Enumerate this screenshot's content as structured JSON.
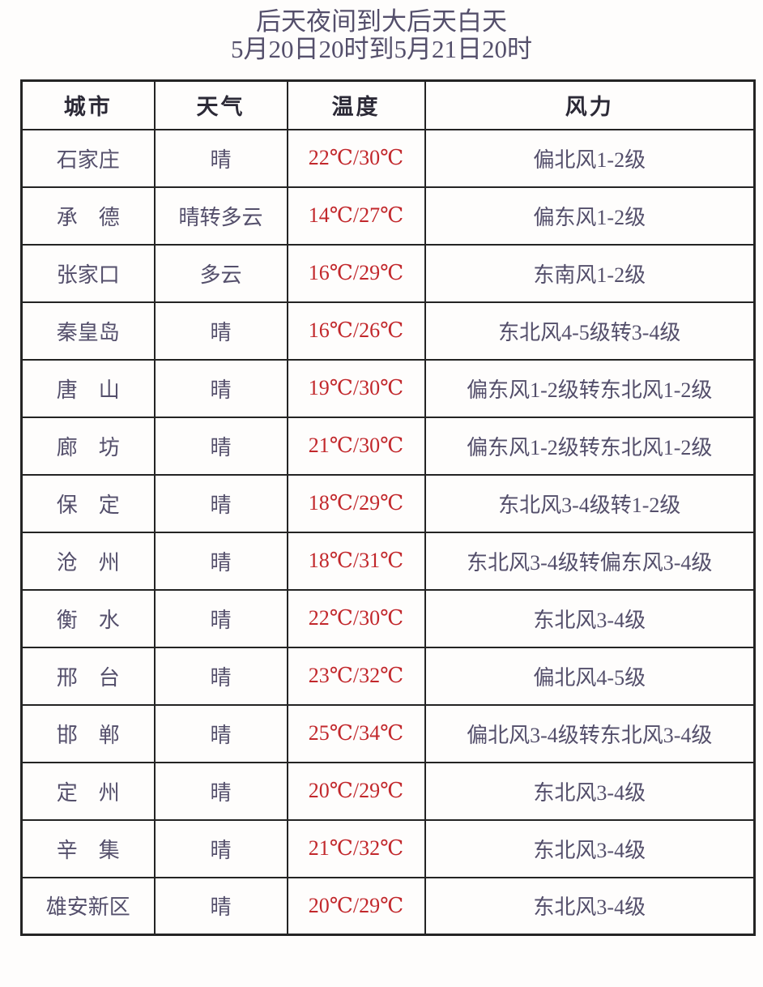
{
  "title": {
    "line1": "后天夜间到大后天白天",
    "line2": "5月20日20时到5月21日20时"
  },
  "table": {
    "headers": [
      "城市",
      "天气",
      "温度",
      "风力"
    ],
    "rows": [
      {
        "city": "石家庄",
        "weather": "晴",
        "temp": "22℃/30℃",
        "wind": "偏北风1-2级"
      },
      {
        "city": "承　德",
        "weather": "晴转多云",
        "temp": "14℃/27℃",
        "wind": "偏东风1-2级"
      },
      {
        "city": "张家口",
        "weather": "多云",
        "temp": "16℃/29℃",
        "wind": "东南风1-2级"
      },
      {
        "city": "秦皇岛",
        "weather": "晴",
        "temp": "16℃/26℃",
        "wind": "东北风4-5级转3-4级"
      },
      {
        "city": "唐　山",
        "weather": "晴",
        "temp": "19℃/30℃",
        "wind": "偏东风1-2级转东北风1-2级"
      },
      {
        "city": "廊　坊",
        "weather": "晴",
        "temp": "21℃/30℃",
        "wind": "偏东风1-2级转东北风1-2级"
      },
      {
        "city": "保　定",
        "weather": "晴",
        "temp": "18℃/29℃",
        "wind": "东北风3-4级转1-2级"
      },
      {
        "city": "沧　州",
        "weather": "晴",
        "temp": "18℃/31℃",
        "wind": "东北风3-4级转偏东风3-4级"
      },
      {
        "city": "衡　水",
        "weather": "晴",
        "temp": "22℃/30℃",
        "wind": "东北风3-4级"
      },
      {
        "city": "邢　台",
        "weather": "晴",
        "temp": "23℃/32℃",
        "wind": "偏北风4-5级"
      },
      {
        "city": "邯　郸",
        "weather": "晴",
        "temp": "25℃/34℃",
        "wind": "偏北风3-4级转东北风3-4级"
      },
      {
        "city": "定　州",
        "weather": "晴",
        "temp": "20℃/29℃",
        "wind": "东北风3-4级"
      },
      {
        "city": "辛　集",
        "weather": "晴",
        "temp": "21℃/32℃",
        "wind": "东北风3-4级"
      },
      {
        "city": "雄安新区",
        "weather": "晴",
        "temp": "20℃/29℃",
        "wind": "东北风3-4级"
      }
    ]
  },
  "colors": {
    "text": "#544f6b",
    "header_text": "#2b2936",
    "temperature": "#c2282c",
    "border": "#242424",
    "background": "#fefdfc"
  }
}
